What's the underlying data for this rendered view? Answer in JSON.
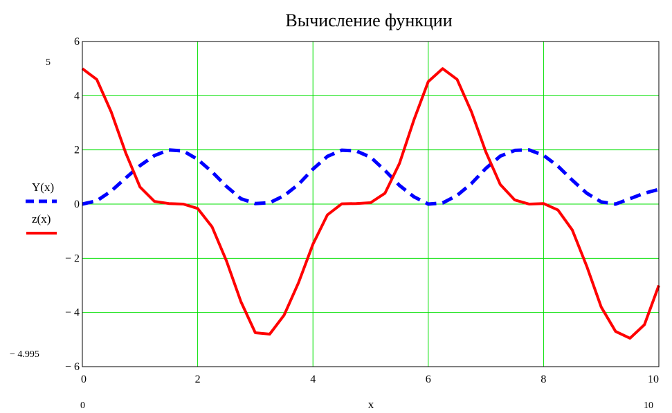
{
  "chart_data": {
    "type": "line",
    "title": "Вычисление функции",
    "xlabel": "x",
    "ylabel": "",
    "xlim": [
      0,
      10
    ],
    "ylim": [
      -6,
      6
    ],
    "x_ticks": [
      "0",
      "2",
      "4",
      "6",
      "8",
      "10"
    ],
    "y_ticks": [
      "6",
      "4",
      "2",
      "0",
      "− 2",
      "− 4",
      "− 6"
    ],
    "grid": true,
    "legend_position": "left",
    "markers": {
      "y_top": "5",
      "y_bottom": "− 4.995",
      "x_left": "0",
      "x_right": "10"
    },
    "series": [
      {
        "name": "Y(x)",
        "color": "#0000ff",
        "style": "dashed",
        "x": [
          0,
          0.25,
          0.5,
          0.75,
          1,
          1.25,
          1.5,
          1.75,
          2,
          2.25,
          2.5,
          2.75,
          3,
          3.25,
          3.5,
          3.75,
          4,
          4.25,
          4.5,
          4.75,
          5,
          5.25,
          5.5,
          5.75,
          6,
          6.25,
          6.5,
          6.75,
          7,
          7.25,
          7.5,
          7.75,
          8,
          8.25,
          8.5,
          8.75,
          9,
          9.25,
          9.5,
          9.75,
          10
        ],
        "values": [
          0,
          0.12,
          0.48,
          0.96,
          1.42,
          1.79,
          2.0,
          1.96,
          1.65,
          1.19,
          0.65,
          0.2,
          0.02,
          0.05,
          0.31,
          0.73,
          1.29,
          1.76,
          1.99,
          1.96,
          1.73,
          1.24,
          0.69,
          0.27,
          0.0,
          0.04,
          0.32,
          0.76,
          1.32,
          1.77,
          1.98,
          2.0,
          1.8,
          1.4,
          0.88,
          0.4,
          0.08,
          0.0,
          0.2,
          0.4,
          0.54
        ]
      },
      {
        "name": "z(x)",
        "color": "#ff0000",
        "style": "solid",
        "x": [
          0,
          0.25,
          0.5,
          0.75,
          1,
          1.25,
          1.5,
          1.75,
          2,
          2.25,
          2.5,
          2.75,
          3,
          3.25,
          3.5,
          3.75,
          4,
          4.25,
          4.5,
          4.75,
          5,
          5.25,
          5.5,
          5.75,
          6,
          6.25,
          6.5,
          6.75,
          7,
          7.25,
          7.5,
          7.75,
          8,
          8.25,
          8.5,
          8.75,
          9,
          9.25,
          9.5,
          9.75,
          10
        ],
        "values": [
          5.0,
          4.6,
          3.4,
          1.9,
          0.63,
          0.1,
          0.02,
          0.0,
          -0.16,
          -0.84,
          -2.1,
          -3.6,
          -4.75,
          -4.8,
          -4.1,
          -2.9,
          -1.48,
          -0.4,
          0.01,
          0.02,
          0.05,
          0.4,
          1.5,
          3.1,
          4.52,
          5.0,
          4.6,
          3.4,
          1.92,
          0.72,
          0.15,
          0.0,
          0.02,
          -0.22,
          -0.96,
          -2.3,
          -3.8,
          -4.7,
          -4.95,
          -4.45,
          -3.0
        ]
      }
    ]
  }
}
